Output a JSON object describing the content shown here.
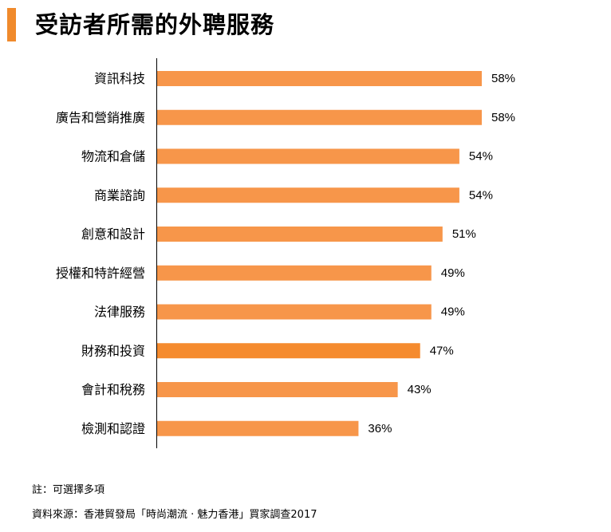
{
  "title": "受訪者所需的外聘服務",
  "colors": {
    "accent": "#F08A2C",
    "bar": "#F7964A",
    "bar_highlight": "#F58B2E",
    "axis": "#000000"
  },
  "chart_data": {
    "type": "bar",
    "orientation": "horizontal",
    "title": "受訪者所需的外聘服務",
    "categories": [
      "資訊科技",
      "廣告和營銷推廣",
      "物流和倉儲",
      "商業諮詢",
      "創意和設計",
      "授權和特許經營",
      "法律服務",
      "財務和投資",
      "會計和稅務",
      "檢測和認證"
    ],
    "values": [
      58,
      58,
      54,
      54,
      51,
      49,
      49,
      47,
      43,
      36
    ],
    "value_labels": [
      "58%",
      "58%",
      "54%",
      "54%",
      "51%",
      "49%",
      "49%",
      "47%",
      "43%",
      "36%"
    ],
    "unit": "%",
    "xlim": [
      0,
      58
    ],
    "grid": false,
    "xlabel": "",
    "ylabel": ""
  },
  "notes": {
    "note": "註：可選擇多項",
    "source": "資料來源：香港貿發局「時尚潮流 · 魅力香港」買家調查2017"
  }
}
